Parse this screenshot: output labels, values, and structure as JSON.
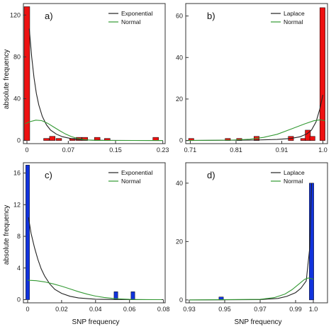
{
  "figure": {
    "ylabel_top": "absolute frequency",
    "ylabel_bottom": "absolute frequency",
    "xlabel_bottom": "SNP frequency"
  },
  "colors": {
    "red_bars": "#ee1111",
    "blue_bars": "#1133dd",
    "fit_curve": "#222222",
    "normal_curve": "#339933"
  },
  "chart_data": [
    {
      "panel": "a)",
      "type": "bar",
      "bar_color": "red",
      "xlim": [
        -0.006,
        0.234
      ],
      "ylim": [
        -3,
        131
      ],
      "xticks": [
        0,
        0.07,
        0.15,
        0.23
      ],
      "xtick_labels": [
        "0",
        "0.07",
        "0.15",
        "0.23"
      ],
      "yticks": [
        0,
        40,
        80,
        120
      ],
      "bar_width": 0.0095,
      "bars": [
        {
          "x": 0.0,
          "y": 128
        },
        {
          "x": 0.033,
          "y": 2
        },
        {
          "x": 0.043,
          "y": 4
        },
        {
          "x": 0.054,
          "y": 2
        },
        {
          "x": 0.077,
          "y": 2
        },
        {
          "x": 0.088,
          "y": 3
        },
        {
          "x": 0.098,
          "y": 3
        },
        {
          "x": 0.119,
          "y": 3
        },
        {
          "x": 0.136,
          "y": 2
        },
        {
          "x": 0.218,
          "y": 3
        }
      ],
      "legend": [
        "Exponential",
        "Normal"
      ],
      "curves": [
        {
          "name": "Exponential",
          "points": [
            [
              0.004,
              107
            ],
            [
              0.008,
              80
            ],
            [
              0.012,
              60
            ],
            [
              0.016,
              45
            ],
            [
              0.02,
              34
            ],
            [
              0.026,
              23
            ],
            [
              0.033,
              15
            ],
            [
              0.04,
              10
            ],
            [
              0.05,
              6
            ],
            [
              0.06,
              3.6
            ],
            [
              0.075,
              1.8
            ],
            [
              0.09,
              0.8
            ],
            [
              0.11,
              0.3
            ],
            [
              0.14,
              0.1
            ],
            [
              0.18,
              0.02
            ],
            [
              0.23,
              0.01
            ]
          ]
        },
        {
          "name": "Normal",
          "points": [
            [
              -0.003,
              16
            ],
            [
              0.005,
              18
            ],
            [
              0.015,
              19.5
            ],
            [
              0.025,
              19
            ],
            [
              0.035,
              16.5
            ],
            [
              0.045,
              13
            ],
            [
              0.055,
              9.5
            ],
            [
              0.065,
              6.3
            ],
            [
              0.075,
              3.8
            ],
            [
              0.085,
              2.1
            ],
            [
              0.095,
              1
            ],
            [
              0.105,
              0.4
            ],
            [
              0.12,
              0.1
            ],
            [
              0.14,
              0.02
            ],
            [
              0.23,
              0
            ]
          ]
        }
      ]
    },
    {
      "panel": "b)",
      "type": "bar",
      "bar_color": "red",
      "xlim": [
        0.7,
        1.01
      ],
      "ylim": [
        -1.5,
        66
      ],
      "xticks": [
        0.71,
        0.81,
        0.91,
        1.0
      ],
      "xtick_labels": [
        "0.71",
        "0.81",
        "0.91",
        "1.0"
      ],
      "yticks": [
        0,
        20,
        40,
        60
      ],
      "bar_width": 0.0115,
      "bars": [
        {
          "x": 0.712,
          "y": 1
        },
        {
          "x": 0.792,
          "y": 1
        },
        {
          "x": 0.817,
          "y": 1
        },
        {
          "x": 0.855,
          "y": 2
        },
        {
          "x": 0.93,
          "y": 2
        },
        {
          "x": 0.957,
          "y": 1
        },
        {
          "x": 0.967,
          "y": 5
        },
        {
          "x": 0.977,
          "y": 2
        },
        {
          "x": 0.999,
          "y": 64
        }
      ],
      "legend": [
        "Laplace",
        "Normal"
      ],
      "curves": [
        {
          "name": "Laplace",
          "points": [
            [
              0.7,
              0
            ],
            [
              0.85,
              0.2
            ],
            [
              0.9,
              0.5
            ],
            [
              0.93,
              1
            ],
            [
              0.95,
              1.8
            ],
            [
              0.965,
              3.2
            ],
            [
              0.975,
              5
            ],
            [
              0.985,
              9
            ],
            [
              0.993,
              15
            ],
            [
              1.0,
              22
            ]
          ]
        },
        {
          "name": "Normal",
          "points": [
            [
              0.7,
              0
            ],
            [
              0.8,
              0.2
            ],
            [
              0.84,
              0.6
            ],
            [
              0.87,
              1.5
            ],
            [
              0.9,
              3
            ],
            [
              0.93,
              5.5
            ],
            [
              0.96,
              8
            ],
            [
              0.98,
              9.5
            ],
            [
              0.995,
              10
            ],
            [
              1.005,
              9.5
            ]
          ]
        }
      ]
    },
    {
      "panel": "c)",
      "type": "bar",
      "bar_color": "blue",
      "xlim": [
        -0.0025,
        0.081
      ],
      "ylim": [
        -0.4,
        17.3
      ],
      "xticks": [
        0,
        0.02,
        0.04,
        0.06,
        0.08
      ],
      "xtick_labels": [
        "0",
        "0.02",
        "0.04",
        "0.06",
        "0.08"
      ],
      "yticks": [
        0,
        4,
        8,
        12,
        16
      ],
      "bar_width": 0.0022,
      "bars": [
        {
          "x": 0.0,
          "y": 17
        },
        {
          "x": 0.052,
          "y": 1
        },
        {
          "x": 0.062,
          "y": 1
        }
      ],
      "legend": [
        "Exponential",
        "Normal"
      ],
      "curves": [
        {
          "name": "Exponential",
          "points": [
            [
              0.0005,
              10.4
            ],
            [
              0.002,
              8.4
            ],
            [
              0.004,
              6.6
            ],
            [
              0.006,
              5.1
            ],
            [
              0.008,
              3.9
            ],
            [
              0.01,
              3.0
            ],
            [
              0.013,
              2.0
            ],
            [
              0.016,
              1.3
            ],
            [
              0.02,
              0.8
            ],
            [
              0.025,
              0.42
            ],
            [
              0.03,
              0.22
            ],
            [
              0.04,
              0.06
            ],
            [
              0.05,
              0.02
            ],
            [
              0.06,
              0.005
            ],
            [
              0.08,
              0
            ]
          ]
        },
        {
          "name": "Normal",
          "points": [
            [
              0.0,
              2.45
            ],
            [
              0.005,
              2.4
            ],
            [
              0.01,
              2.25
            ],
            [
              0.015,
              2.0
            ],
            [
              0.02,
              1.7
            ],
            [
              0.025,
              1.35
            ],
            [
              0.03,
              1.0
            ],
            [
              0.035,
              0.7
            ],
            [
              0.04,
              0.45
            ],
            [
              0.045,
              0.28
            ],
            [
              0.05,
              0.16
            ],
            [
              0.055,
              0.09
            ],
            [
              0.06,
              0.04
            ],
            [
              0.065,
              0.02
            ],
            [
              0.07,
              0.01
            ],
            [
              0.079,
              0
            ]
          ]
        }
      ]
    },
    {
      "panel": "d)",
      "type": "bar",
      "bar_color": "blue",
      "xlim": [
        0.928,
        1.008
      ],
      "ylim": [
        -1,
        47
      ],
      "xticks": [
        0.93,
        0.95,
        0.97,
        0.99,
        1.0
      ],
      "xtick_labels": [
        "0.93",
        "0.95",
        "0.97",
        "0.99",
        "1.0"
      ],
      "yticks": [
        0,
        20,
        40
      ],
      "bar_width": 0.0025,
      "bars": [
        {
          "x": 0.948,
          "y": 1
        },
        {
          "x": 0.999,
          "y": 40
        }
      ],
      "legend": [
        "Laplace",
        "Normal"
      ],
      "curves": [
        {
          "name": "Laplace",
          "points": [
            [
              0.93,
              0
            ],
            [
              0.97,
              0.1
            ],
            [
              0.98,
              0.5
            ],
            [
              0.985,
              1.2
            ],
            [
              0.99,
              2.5
            ],
            [
              0.993,
              4
            ],
            [
              0.996,
              6.5
            ],
            [
              0.998,
              18
            ],
            [
              0.999,
              40
            ]
          ]
        },
        {
          "name": "Normal",
          "points": [
            [
              0.93,
              0
            ],
            [
              0.97,
              0.2
            ],
            [
              0.978,
              0.8
            ],
            [
              0.984,
              2
            ],
            [
              0.988,
              3.5
            ],
            [
              0.992,
              5.5
            ],
            [
              0.995,
              7
            ],
            [
              0.997,
              7.5
            ],
            [
              0.999,
              7.3
            ],
            [
              1.0,
              7
            ]
          ]
        }
      ]
    }
  ]
}
